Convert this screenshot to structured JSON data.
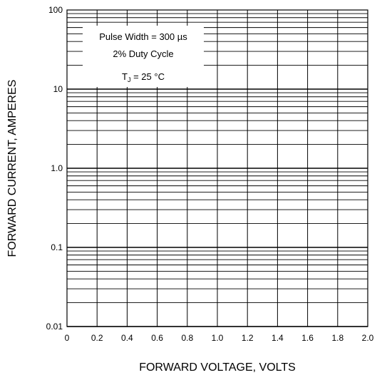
{
  "chart_data": {
    "type": "line",
    "title": "",
    "xlabel": "FORWARD VOLTAGE, VOLTS",
    "ylabel": "FORWARD CURRENT, AMPERES",
    "xlim": [
      0,
      2.0
    ],
    "ylim": [
      0.01,
      100
    ],
    "y_scale": "log",
    "grid": true,
    "x_ticks": [
      0,
      0.2,
      0.4,
      0.6,
      0.8,
      1.0,
      1.2,
      1.4,
      1.6,
      1.8,
      2.0
    ],
    "x_tick_labels": [
      "0",
      "0.2",
      "0.4",
      "0.6",
      "0.8",
      "1.0",
      "1.2",
      "1.4",
      "1.6",
      "1.8",
      "2.0"
    ],
    "y_ticks": [
      0.01,
      0.1,
      1.0,
      10,
      100
    ],
    "y_tick_labels": [
      "0.01",
      "0.1",
      "1.0",
      "10",
      "100"
    ],
    "series": [],
    "annotations": {
      "pulse_width": "Pulse Width = 300 µs",
      "duty_cycle": "2% Duty Cycle",
      "tj_symbol": "T",
      "tj_subscript": "J",
      "tj_value": " = 25 °C"
    }
  }
}
